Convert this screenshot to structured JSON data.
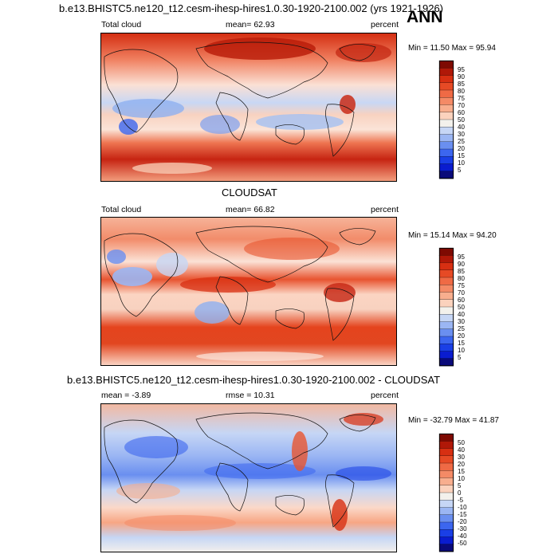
{
  "header": {
    "title": "b.e13.BHISTC5.ne120_t12.cesm-ihesp-hires1.0.30-1920-2100.002 (yrs 1921-1926)",
    "season": "ANN"
  },
  "colors": {
    "model_obs_palette": [
      "#0a0a7a",
      "#0a1ccf",
      "#1a3fe6",
      "#3c66ef",
      "#6a8ff0",
      "#9bb6f3",
      "#c6d6f5",
      "#f3f1ec",
      "#fbd2bd",
      "#f8ae8e",
      "#f48a66",
      "#ef6a45",
      "#e64a25",
      "#d72f12",
      "#b01808",
      "#7e0a02"
    ],
    "diff_palette": [
      "#0a0a7a",
      "#0a1ccf",
      "#1a3fe6",
      "#3c66ef",
      "#6a8ff0",
      "#9bb6f3",
      "#c6d6f5",
      "#f3f1ec",
      "#fbd2bd",
      "#f8ae8e",
      "#f48a66",
      "#ef6a45",
      "#e64a25",
      "#d72f12",
      "#b01808",
      "#7e0a02"
    ]
  },
  "panels": [
    {
      "id": "model",
      "variable": "Total cloud",
      "mean_text": "mean=  62.93",
      "units": "percent",
      "minmax": "Min =  11.50 Max =  95.94",
      "colorbar_labels": [
        "95",
        "90",
        "85",
        "80",
        "75",
        "70",
        "60",
        "50",
        "40",
        "30",
        "25",
        "20",
        "15",
        "10",
        "5"
      ]
    },
    {
      "id": "obs",
      "title": "CLOUDSAT",
      "variable": "Total cloud",
      "mean_text": "mean=  66.82",
      "units": "percent",
      "minmax": "Min =  15.14 Max =  94.20",
      "colorbar_labels": [
        "95",
        "90",
        "85",
        "80",
        "75",
        "70",
        "60",
        "50",
        "40",
        "30",
        "25",
        "20",
        "15",
        "10",
        "5"
      ]
    },
    {
      "id": "diff",
      "title": "b.e13.BHISTC5.ne120_t12.cesm-ihesp-hires1.0.30-1920-2100.002 - CLOUDSAT",
      "mean_text": "mean =  -3.89",
      "rmse_text": "rmse =  10.31",
      "units": "percent",
      "minmax": "Min = -32.79 Max =  41.87",
      "colorbar_labels": [
        "50",
        "40",
        "30",
        "20",
        "15",
        "10",
        "5",
        "0",
        "-5",
        "-10",
        "-15",
        "-20",
        "-30",
        "-40",
        "-50"
      ]
    }
  ]
}
